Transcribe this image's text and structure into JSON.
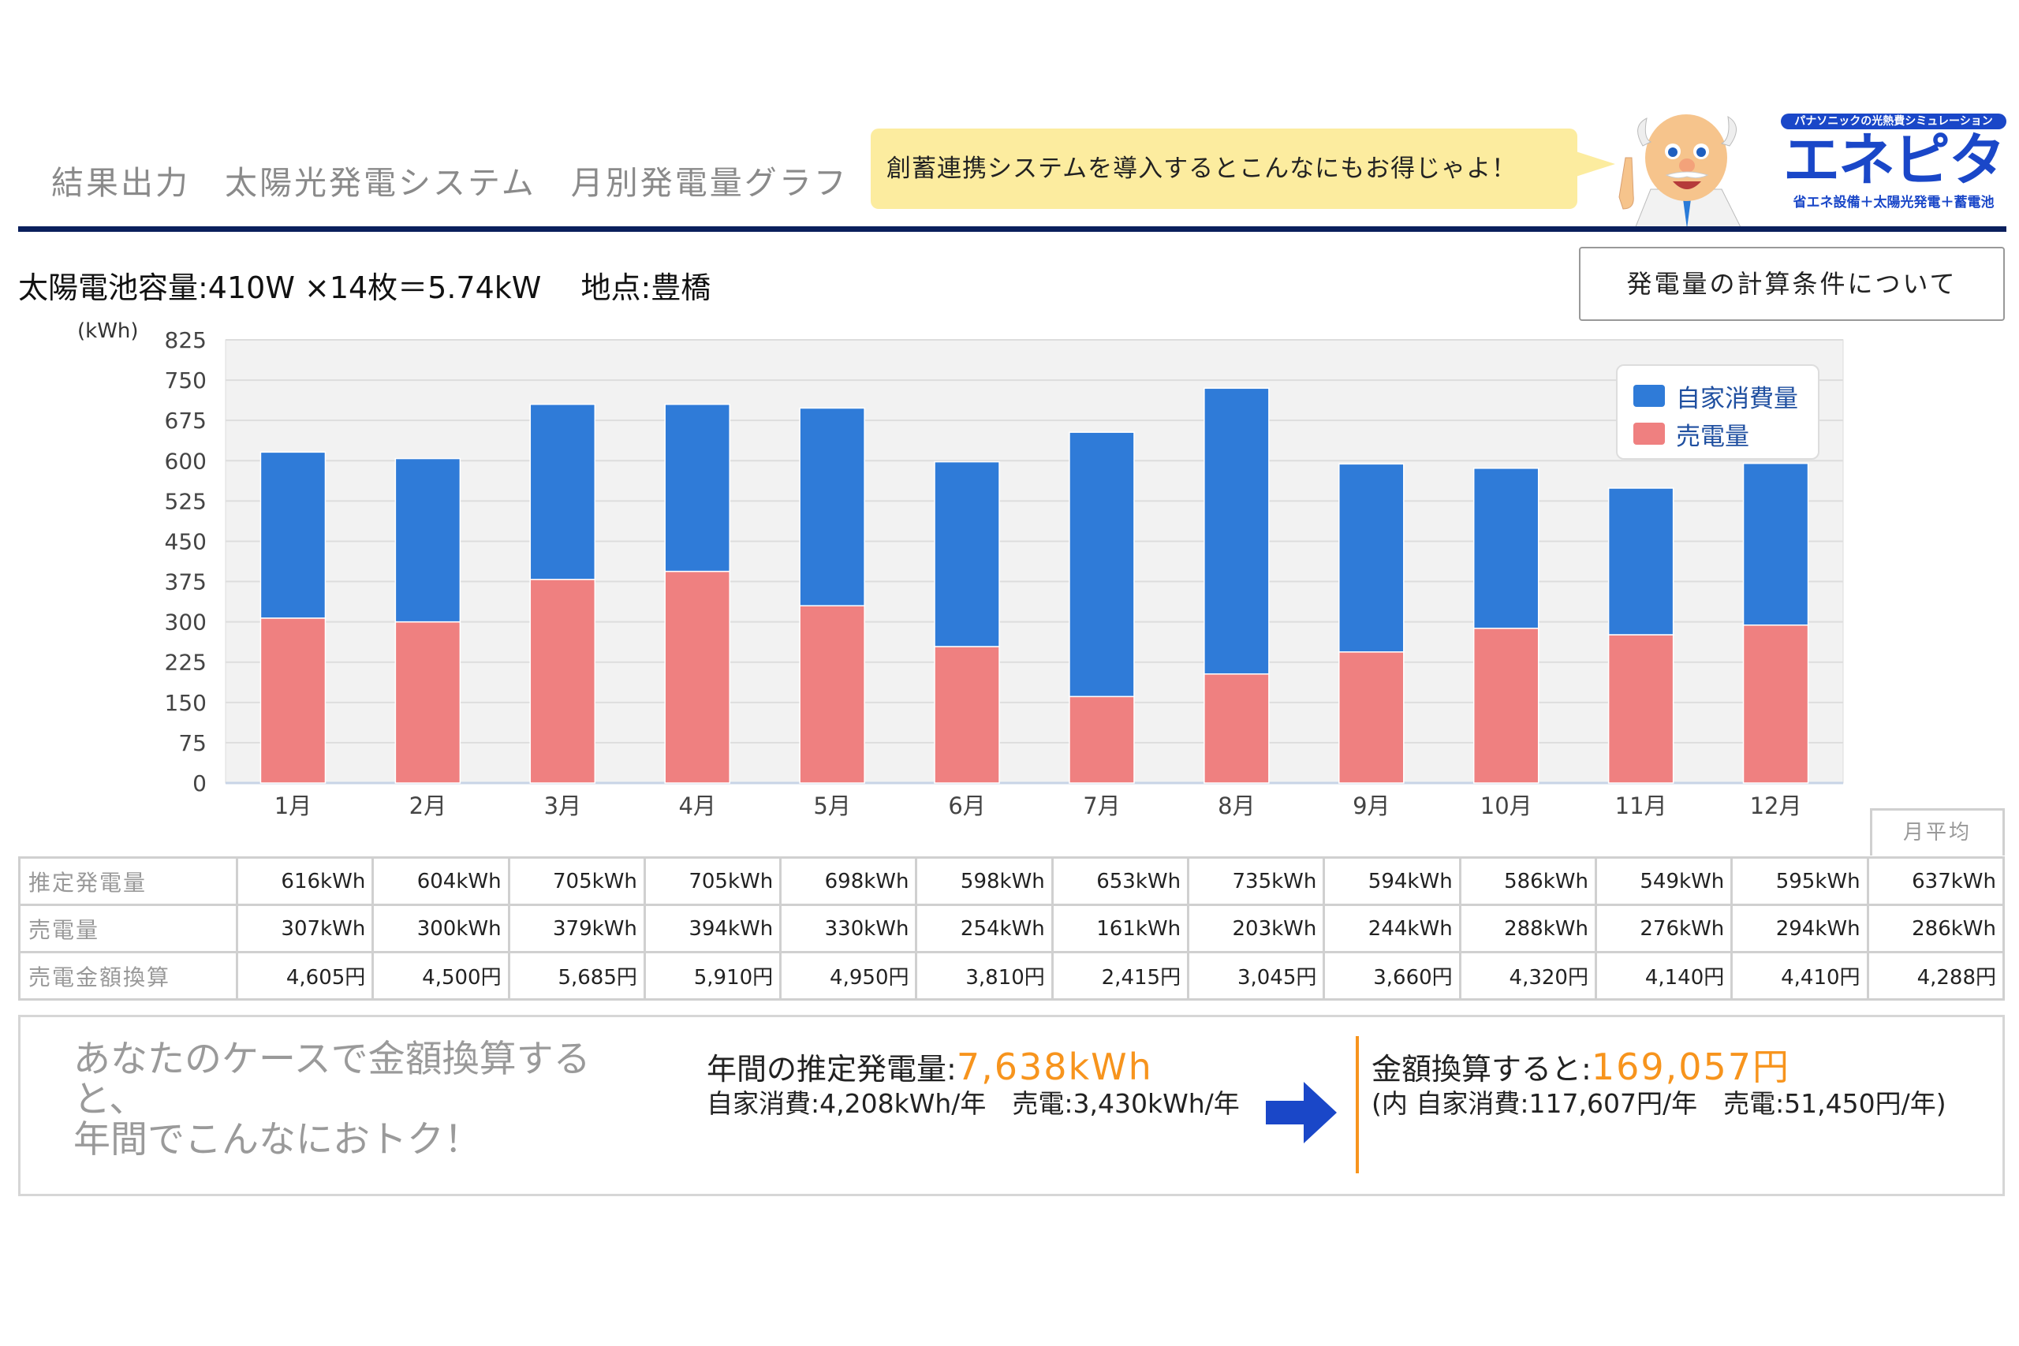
{
  "header": {
    "title": "結果出力　太陽光発電システム　月別発電量グラフ",
    "bubble_text": "創蓄連携システムを導入するとこんなにもお得じゃよ！",
    "logo": {
      "tagline": "パナソニックの光熱費シミュレーション",
      "name": "エネピタ",
      "subtitle": "省エネ設備＋太陽光発電＋蓄電池"
    }
  },
  "capacity_text": "太陽電池容量:410W ×14枚＝5.74kW　 地点:豊橋",
  "conditions_button": "発電量の計算条件について",
  "colors": {
    "self_consumption": "#2f7bd8",
    "sold": "#ef8080",
    "navy": "#0a1f5c",
    "accent": "#f7941d",
    "bubble": "#fcec9f"
  },
  "chart_data": {
    "type": "bar",
    "stacked": true,
    "ylabel": "(kWh)",
    "ylim": [
      0,
      825
    ],
    "yticks": [
      "0",
      "75",
      "150",
      "225",
      "300",
      "375",
      "450",
      "525",
      "600",
      "675",
      "750",
      "825"
    ],
    "categories": [
      "1月",
      "2月",
      "3月",
      "4月",
      "5月",
      "6月",
      "7月",
      "8月",
      "9月",
      "10月",
      "11月",
      "12月"
    ],
    "legend_position": "top-right",
    "series": [
      {
        "name": "売電量",
        "values": [
          307,
          300,
          379,
          394,
          330,
          254,
          161,
          203,
          244,
          288,
          276,
          294
        ]
      },
      {
        "name": "自家消費量",
        "values": [
          309,
          304,
          326,
          311,
          368,
          344,
          492,
          532,
          350,
          298,
          273,
          301
        ]
      }
    ]
  },
  "table": {
    "avg_header": "月平均",
    "rows": [
      {
        "label": "推定発電量",
        "cells": [
          "616kWh",
          "604kWh",
          "705kWh",
          "705kWh",
          "698kWh",
          "598kWh",
          "653kWh",
          "735kWh",
          "594kWh",
          "586kWh",
          "549kWh",
          "595kWh",
          "637kWh"
        ]
      },
      {
        "label": "売電量",
        "cells": [
          "307kWh",
          "300kWh",
          "379kWh",
          "394kWh",
          "330kWh",
          "254kWh",
          "161kWh",
          "203kWh",
          "244kWh",
          "288kWh",
          "276kWh",
          "294kWh",
          "286kWh"
        ]
      },
      {
        "label": "売電金額換算",
        "cells": [
          "4,605円",
          "4,500円",
          "5,685円",
          "5,910円",
          "4,950円",
          "3,810円",
          "2,415円",
          "3,045円",
          "3,660円",
          "4,320円",
          "4,140円",
          "4,410円",
          "4,288円"
        ]
      }
    ]
  },
  "summary": {
    "left_line1": "あなたのケースで金額換算すると、",
    "left_line2": "年間でこんなにおトク！",
    "annual_label": "年間の推定発電量:",
    "annual_value": "7,638kWh",
    "annual_detail": "自家消費:4,208kWh/年　売電:3,430kWh/年",
    "money_label": "金額換算すると:",
    "money_value": "169,057円",
    "money_detail": "(内 自家消費:117,607円/年　売電:51,450円/年)"
  }
}
